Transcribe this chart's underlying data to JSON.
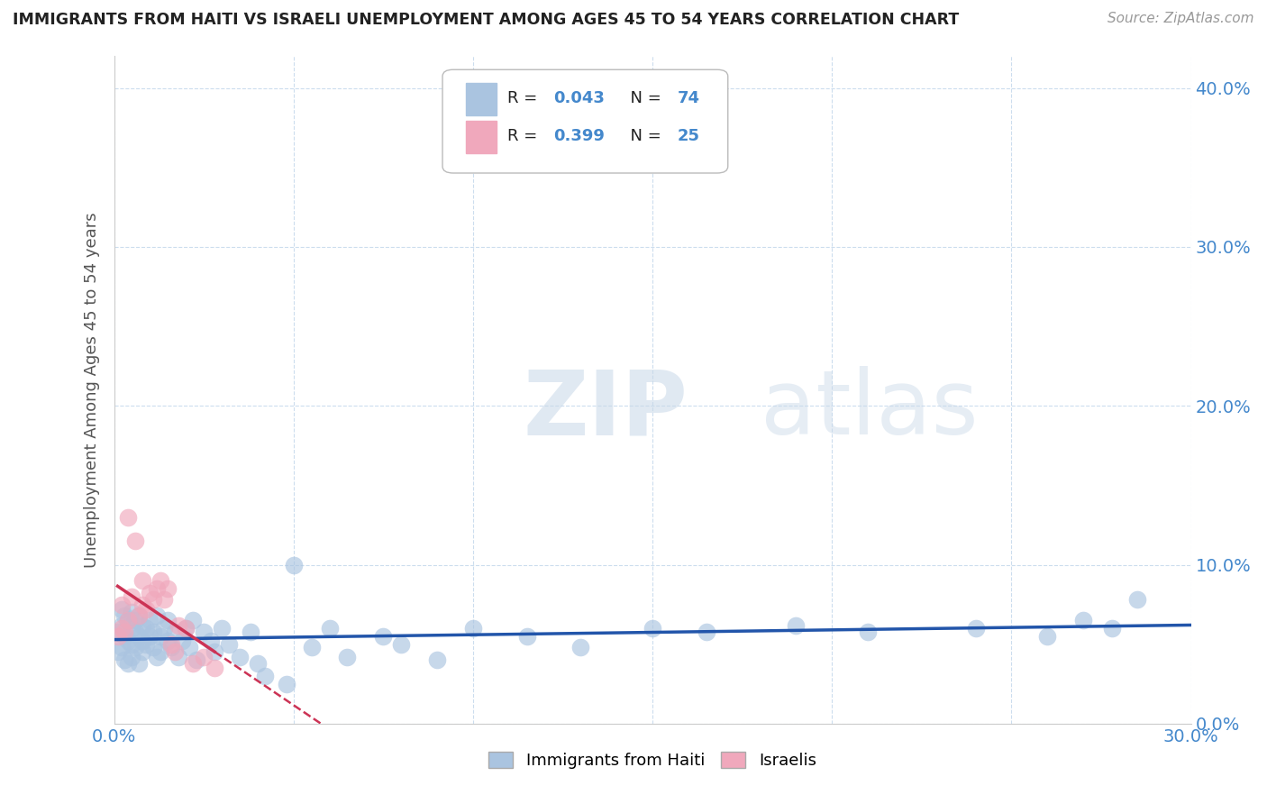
{
  "title": "IMMIGRANTS FROM HAITI VS ISRAELI UNEMPLOYMENT AMONG AGES 45 TO 54 YEARS CORRELATION CHART",
  "source": "Source: ZipAtlas.com",
  "ylabel_label": "Unemployment Among Ages 45 to 54 years",
  "xlim": [
    0.0,
    0.3
  ],
  "ylim": [
    0.0,
    0.42
  ],
  "ytick_vals": [
    0.0,
    0.1,
    0.2,
    0.3,
    0.4
  ],
  "xtick_vals": [
    0.0,
    0.05,
    0.1,
    0.15,
    0.2,
    0.25,
    0.3
  ],
  "xtick_labels_show": [
    0.0,
    0.3
  ],
  "ytick_labels_show": [
    0.0,
    0.1,
    0.2,
    0.3,
    0.4
  ],
  "haiti_color": "#aac4e0",
  "israeli_color": "#f0a8bc",
  "haiti_line_color": "#2255aa",
  "israeli_line_color": "#cc3355",
  "legend_r1": "0.043",
  "legend_n1": "74",
  "legend_r2": "0.399",
  "legend_n2": "25",
  "watermark_zip": "ZIP",
  "watermark_atlas": "atlas",
  "tick_color": "#4488cc",
  "grid_color": "#ccddee",
  "haiti_x": [
    0.001,
    0.001,
    0.002,
    0.002,
    0.002,
    0.003,
    0.003,
    0.003,
    0.004,
    0.004,
    0.004,
    0.005,
    0.005,
    0.005,
    0.005,
    0.006,
    0.006,
    0.006,
    0.007,
    0.007,
    0.007,
    0.008,
    0.008,
    0.008,
    0.009,
    0.009,
    0.01,
    0.01,
    0.011,
    0.011,
    0.012,
    0.012,
    0.013,
    0.013,
    0.014,
    0.015,
    0.015,
    0.016,
    0.017,
    0.018,
    0.019,
    0.02,
    0.021,
    0.022,
    0.023,
    0.025,
    0.027,
    0.028,
    0.03,
    0.032,
    0.035,
    0.038,
    0.04,
    0.042,
    0.048,
    0.05,
    0.055,
    0.06,
    0.065,
    0.075,
    0.08,
    0.09,
    0.1,
    0.115,
    0.13,
    0.15,
    0.165,
    0.19,
    0.21,
    0.24,
    0.26,
    0.27,
    0.278,
    0.285
  ],
  "haiti_y": [
    0.058,
    0.045,
    0.062,
    0.072,
    0.048,
    0.055,
    0.068,
    0.04,
    0.052,
    0.065,
    0.038,
    0.06,
    0.07,
    0.05,
    0.042,
    0.058,
    0.065,
    0.048,
    0.055,
    0.068,
    0.038,
    0.052,
    0.062,
    0.045,
    0.06,
    0.05,
    0.055,
    0.065,
    0.048,
    0.058,
    0.042,
    0.068,
    0.055,
    0.045,
    0.06,
    0.052,
    0.065,
    0.048,
    0.058,
    0.042,
    0.052,
    0.06,
    0.048,
    0.065,
    0.04,
    0.058,
    0.052,
    0.045,
    0.06,
    0.05,
    0.042,
    0.058,
    0.038,
    0.03,
    0.025,
    0.1,
    0.048,
    0.06,
    0.042,
    0.055,
    0.05,
    0.04,
    0.06,
    0.055,
    0.048,
    0.06,
    0.058,
    0.062,
    0.058,
    0.06,
    0.055,
    0.065,
    0.06,
    0.078
  ],
  "israeli_x": [
    0.001,
    0.002,
    0.002,
    0.003,
    0.004,
    0.004,
    0.005,
    0.006,
    0.007,
    0.008,
    0.008,
    0.009,
    0.01,
    0.011,
    0.012,
    0.013,
    0.014,
    0.015,
    0.016,
    0.017,
    0.018,
    0.02,
    0.022,
    0.025,
    0.028
  ],
  "israeli_y": [
    0.055,
    0.06,
    0.075,
    0.058,
    0.13,
    0.065,
    0.08,
    0.115,
    0.068,
    0.075,
    0.09,
    0.072,
    0.082,
    0.078,
    0.085,
    0.09,
    0.078,
    0.085,
    0.05,
    0.045,
    0.062,
    0.06,
    0.038,
    0.042,
    0.035
  ]
}
